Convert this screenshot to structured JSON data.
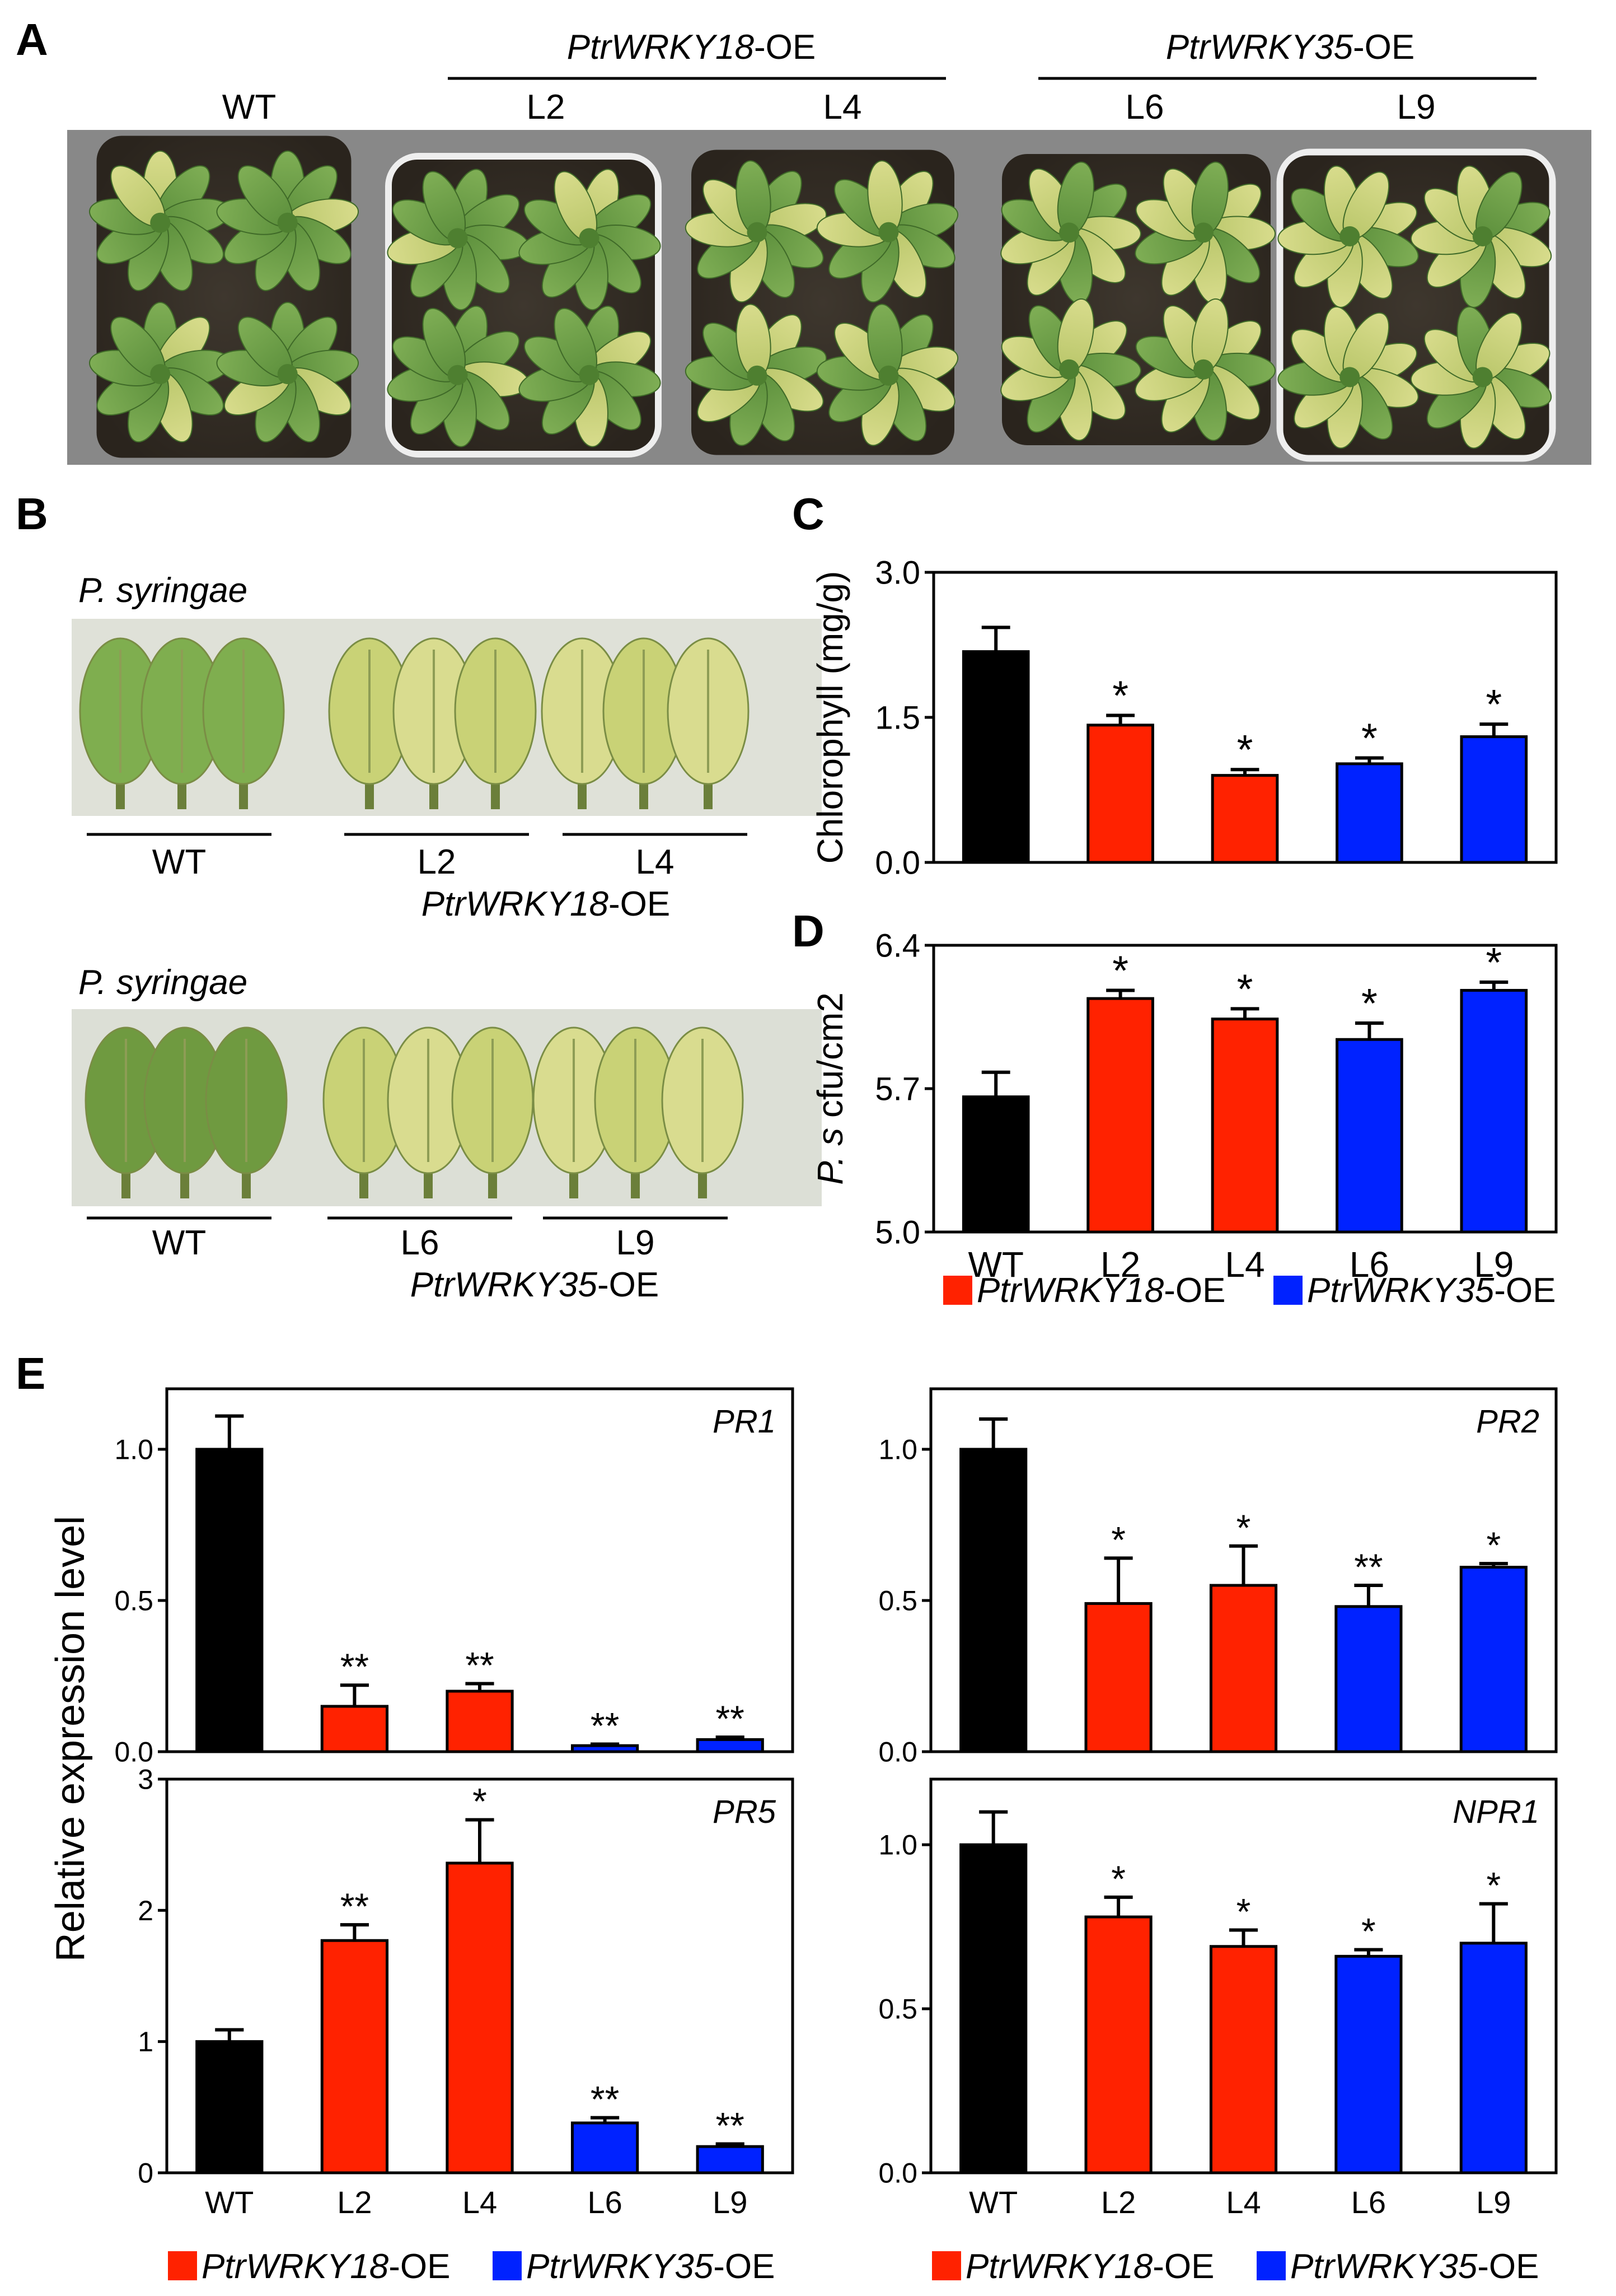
{
  "figure": {
    "panels": {
      "a": "A",
      "b": "B",
      "c": "C",
      "d": "D",
      "e": "E"
    },
    "panel_a": {
      "wt_label": "WT",
      "group18": {
        "gene": "PtrWRKY18",
        "suffix": "-OE",
        "lines": [
          "L2",
          "L4"
        ]
      },
      "group35": {
        "gene": "PtrWRKY35",
        "suffix": "-OE",
        "lines": [
          "L6",
          "L9"
        ]
      }
    },
    "panel_b": {
      "top": {
        "pathogen": "P. syringae",
        "labels": [
          "WT",
          "L2",
          "L4"
        ],
        "gene": "PtrWRKY18",
        "suffix": "-OE"
      },
      "bottom": {
        "pathogen": "P. syringae",
        "labels": [
          "WT",
          "L6",
          "L9"
        ],
        "gene": "PtrWRKY35",
        "suffix": "-OE"
      }
    },
    "legend": {
      "entry18": {
        "gene": "PtrWRKY18",
        "suffix": "-OE"
      },
      "entry35": {
        "gene": "PtrWRKY35",
        "suffix": "-OE"
      }
    },
    "colors": {
      "wt": "#000000",
      "oe18": "#ff2200",
      "oe35": "#0022ff",
      "photo_bg": "#888888"
    },
    "e_ylabel": "Relative expression level"
  },
  "chart_data": [
    {
      "id": "C",
      "type": "bar",
      "categories": [
        "WT",
        "L2",
        "L4",
        "L6",
        "L9"
      ],
      "values": [
        2.18,
        1.42,
        0.9,
        1.02,
        1.3
      ],
      "errors": [
        0.25,
        0.1,
        0.06,
        0.06,
        0.13
      ],
      "significance": [
        "",
        "*",
        "*",
        "*",
        "*"
      ],
      "ylabel": "Chlorophyll (mg/g)",
      "ylim": [
        0,
        3.0
      ],
      "yticks": [
        0.0,
        1.5,
        3.0
      ],
      "ytick_labels": [
        "0.0",
        "1.5",
        "3.0"
      ],
      "label": "",
      "show_xticklabels": false
    },
    {
      "id": "D",
      "type": "bar",
      "categories": [
        "WT",
        "L2",
        "L4",
        "L6",
        "L9"
      ],
      "values": [
        5.66,
        6.14,
        6.04,
        5.94,
        6.18
      ],
      "errors": [
        0.12,
        0.04,
        0.05,
        0.08,
        0.04
      ],
      "significance": [
        "",
        "*",
        "*",
        "*",
        "*"
      ],
      "ylabel": "P. s cfu/cm2",
      "ylim": [
        5.0,
        6.4
      ],
      "yticks": [
        5.0,
        5.7,
        6.4
      ],
      "ytick_labels": [
        "5.0",
        "5.7",
        "6.4"
      ],
      "label": "",
      "show_xticklabels": true
    },
    {
      "id": "E-PR1",
      "type": "bar",
      "categories": [
        "WT",
        "L2",
        "L4",
        "L6",
        "L9"
      ],
      "values": [
        1.0,
        0.15,
        0.2,
        0.02,
        0.04
      ],
      "errors": [
        0.11,
        0.07,
        0.025,
        0.005,
        0.008
      ],
      "significance": [
        "",
        "**",
        "**",
        "**",
        "**"
      ],
      "ylabel": "",
      "ylim": [
        0,
        1.2
      ],
      "yticks": [
        0.0,
        0.5,
        1.0
      ],
      "ytick_labels": [
        "0.0",
        "0.5",
        "1.0"
      ],
      "label": "PR1",
      "show_xticklabels": false
    },
    {
      "id": "E-PR2",
      "type": "bar",
      "categories": [
        "WT",
        "L2",
        "L4",
        "L6",
        "L9"
      ],
      "values": [
        1.0,
        0.49,
        0.55,
        0.48,
        0.61
      ],
      "errors": [
        0.1,
        0.15,
        0.13,
        0.07,
        0.012
      ],
      "significance": [
        "",
        "*",
        "*",
        "**",
        "*"
      ],
      "ylabel": "",
      "ylim": [
        0,
        1.2
      ],
      "yticks": [
        0.0,
        0.5,
        1.0
      ],
      "ytick_labels": [
        "0.0",
        "0.5",
        "1.0"
      ],
      "label": "PR2",
      "show_xticklabels": false
    },
    {
      "id": "E-PR5",
      "type": "bar",
      "categories": [
        "WT",
        "L2",
        "L4",
        "L6",
        "L9"
      ],
      "values": [
        1.0,
        1.77,
        2.36,
        0.38,
        0.2
      ],
      "errors": [
        0.09,
        0.12,
        0.33,
        0.04,
        0.02
      ],
      "significance": [
        "",
        "**",
        "*",
        "**",
        "**"
      ],
      "ylabel": "",
      "ylim": [
        0,
        3
      ],
      "yticks": [
        0,
        1,
        2,
        3
      ],
      "ytick_labels": [
        "0",
        "1",
        "2",
        "3"
      ],
      "label": "PR5",
      "show_xticklabels": true
    },
    {
      "id": "E-NPR1",
      "type": "bar",
      "categories": [
        "WT",
        "L2",
        "L4",
        "L6",
        "L9"
      ],
      "values": [
        1.0,
        0.78,
        0.69,
        0.66,
        0.7
      ],
      "errors": [
        0.1,
        0.06,
        0.05,
        0.02,
        0.12
      ],
      "significance": [
        "",
        "*",
        "*",
        "*",
        "*"
      ],
      "ylabel": "",
      "ylim": [
        0,
        1.2
      ],
      "yticks": [
        0.0,
        0.5,
        1.0
      ],
      "ytick_labels": [
        "0.0",
        "0.5",
        "1.0"
      ],
      "label": "NPR1",
      "show_xticklabels": true
    }
  ]
}
